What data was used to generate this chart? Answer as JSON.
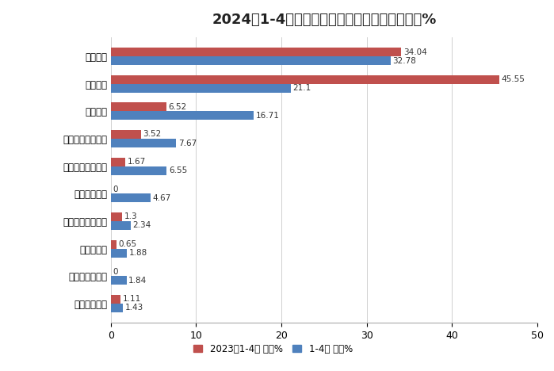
{
  "title": "2024年1-4月新能源搅拌车占比及去年同期占比%",
  "categories": [
    "广州穗景客车",
    "河南犀重新能源",
    "福田戴姆勒",
    "洛阳中集凌宇汽车",
    "中国重汽集团",
    "芜湖中集瑞江汽车",
    "远程新能源商用车",
    "中联重科",
    "三一汽车",
    "徐工重卡"
  ],
  "values_2023": [
    1.11,
    0,
    0.65,
    1.3,
    0,
    1.67,
    3.52,
    6.52,
    45.55,
    34.04
  ],
  "values_2024": [
    1.43,
    1.84,
    1.88,
    2.34,
    4.67,
    6.55,
    7.67,
    16.71,
    21.1,
    32.78
  ],
  "color_2023": "#c0504d",
  "color_2024": "#4f81bd",
  "legend_2023": "2023年1-4月 占比%",
  "legend_2024": "1-4月 占比%",
  "xlim": [
    0,
    50
  ],
  "xticks": [
    0,
    10,
    20,
    30,
    40,
    50
  ],
  "background_color": "#ffffff",
  "grid_color": "#d0d0d0",
  "title_fontsize": 13,
  "label_fontsize": 8.5,
  "value_fontsize": 7.5,
  "bar_height": 0.32
}
